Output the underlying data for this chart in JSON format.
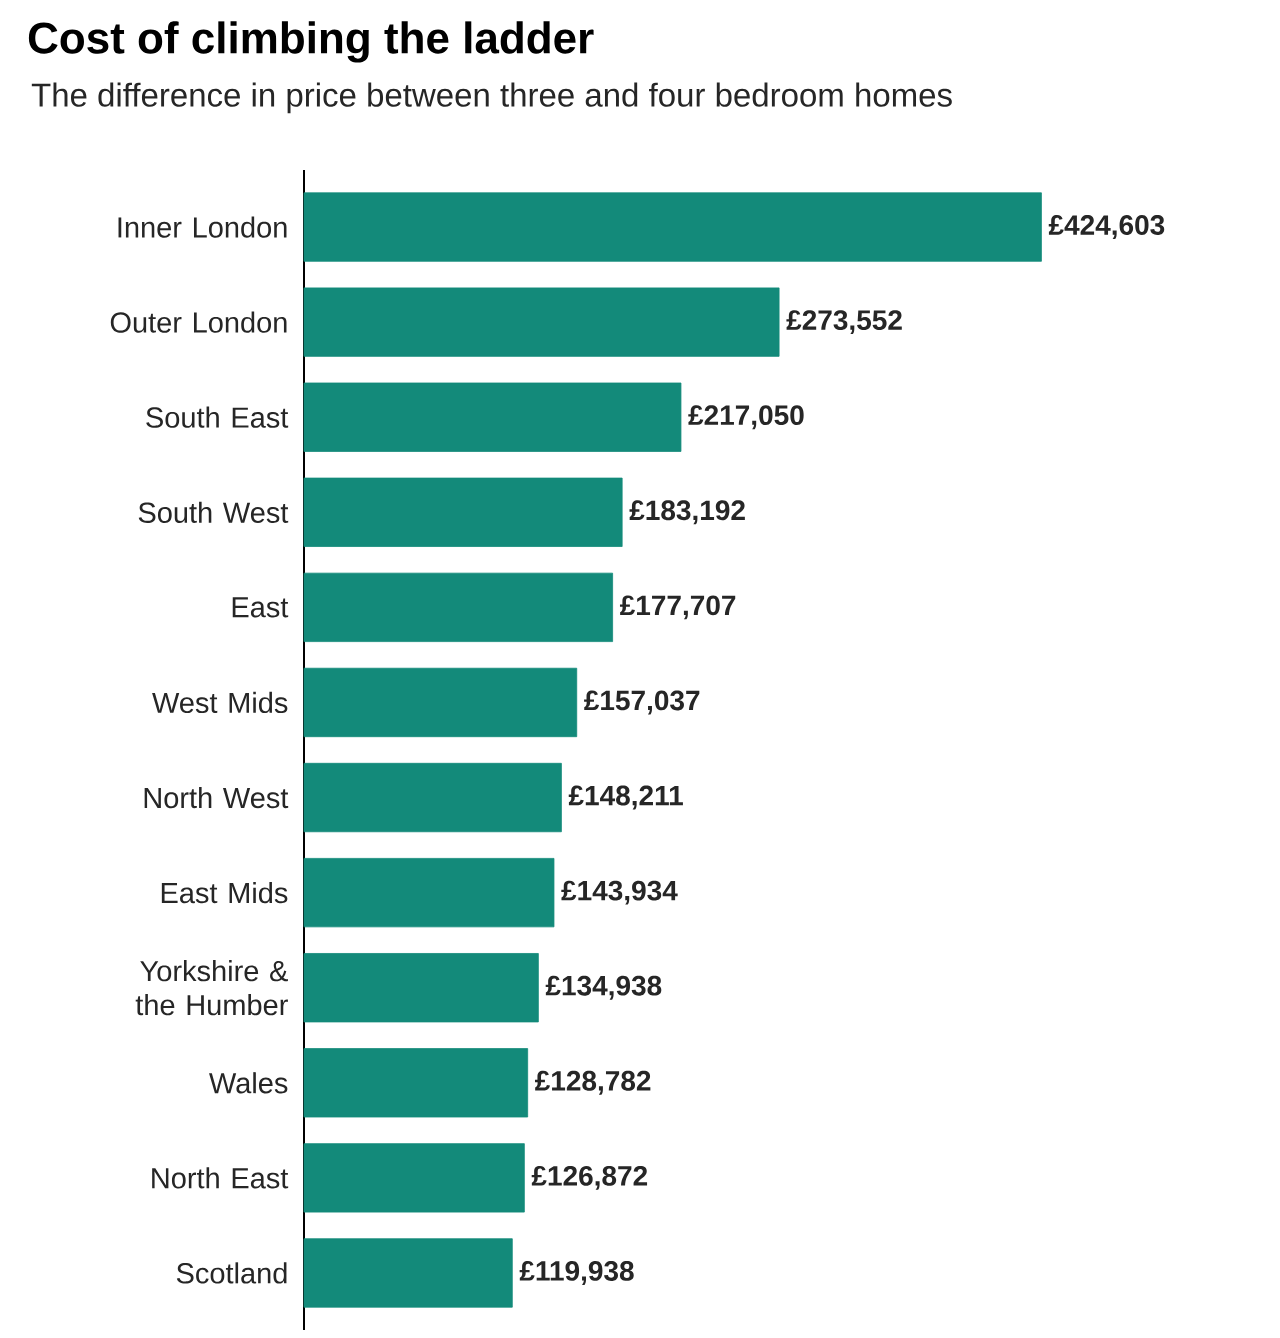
{
  "chart_data": {
    "type": "bar",
    "orientation": "horizontal",
    "title": "Cost of climbing the ladder",
    "subtitle": "The difference in price between three and four bedroom homes",
    "categories": [
      "Inner London",
      "Outer London",
      "South East",
      "South West",
      "East",
      "West Mids",
      "North West",
      "East Mids",
      "Yorkshire & the Humber",
      "Wales",
      "North East",
      "Scotland"
    ],
    "values": [
      424603,
      273552,
      217050,
      183192,
      177707,
      157037,
      148211,
      143934,
      134938,
      128782,
      126872,
      119938
    ],
    "value_labels": [
      "£424,603",
      "£273,552",
      "£217,050",
      "£183,192",
      "£177,707",
      "£157,037",
      "£148,211",
      "£143,934",
      "£134,938",
      "£128,782",
      "£126,872",
      "£119,938"
    ],
    "color": "#138a7a"
  }
}
